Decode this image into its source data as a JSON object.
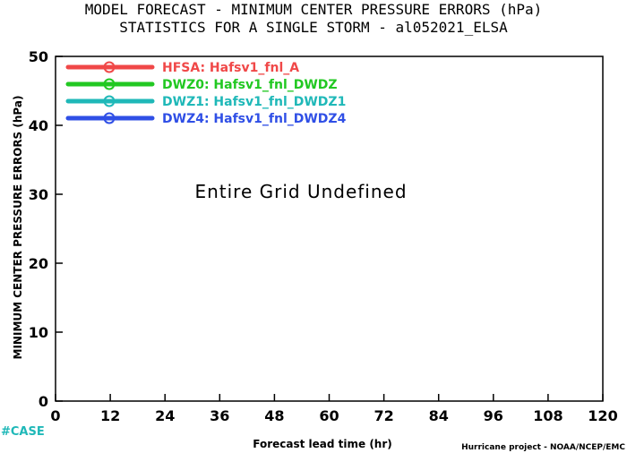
{
  "header": {
    "title_line1": "MODEL FORECAST - MINIMUM CENTER PRESSURE ERRORS (hPa)",
    "title_line2": "STATISTICS FOR A SINGLE STORM - al052021_ELSA"
  },
  "message": "Entire Grid Undefined",
  "case_label": "#CASE",
  "footer": "Hurricane project - NOAA/NCEP/EMC",
  "colors": {
    "case": "#1fb8b8"
  },
  "chart_data": {
    "type": "line",
    "title": "MODEL FORECAST - MINIMUM CENTER PRESSURE ERRORS (hPa)",
    "subtitle": "STATISTICS FOR A SINGLE STORM - al052021_ELSA",
    "xlabel": "Forecast lead time (hr)",
    "ylabel": "MINIMUM CENTER PRESSURE ERRORS (hPa)",
    "xlim": [
      0,
      120
    ],
    "ylim": [
      0,
      50
    ],
    "xticks": [
      "0",
      "12",
      "24",
      "36",
      "48",
      "60",
      "72",
      "84",
      "96",
      "108",
      "120"
    ],
    "yticks": [
      "0",
      "10",
      "20",
      "30",
      "40",
      "50"
    ],
    "grid": false,
    "legend_position": "top-left",
    "series": [
      {
        "name": "HFSA: Hafsv1_fnl_A",
        "color": "#f04848",
        "values": []
      },
      {
        "name": "DWZ0: Hafsv1_fnl_DWDZ",
        "color": "#22c822",
        "values": []
      },
      {
        "name": "DWZ1: Hafsv1_fnl_DWDZ1",
        "color": "#1fb8b8",
        "values": []
      },
      {
        "name": "DWZ4: Hafsv1_fnl_DWDZ4",
        "color": "#2f4fe6",
        "values": []
      }
    ]
  }
}
